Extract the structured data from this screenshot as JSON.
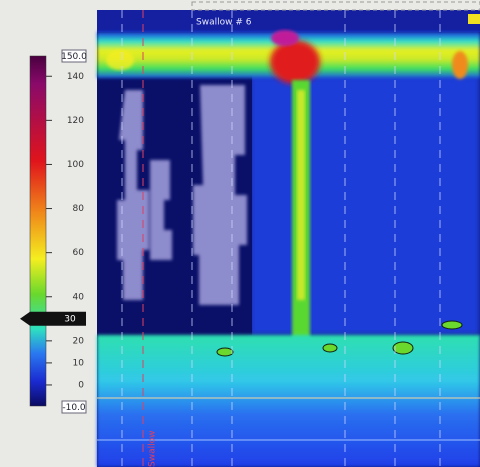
{
  "colorbar": {
    "max_label": "150.0",
    "min_label": "-10.0",
    "ticks": [
      140,
      120,
      100,
      80,
      60,
      40,
      20,
      10,
      0
    ],
    "marker": 30
  },
  "plot": {
    "event_label": "Swallow # 6",
    "vertical_label": "Swallow"
  }
}
